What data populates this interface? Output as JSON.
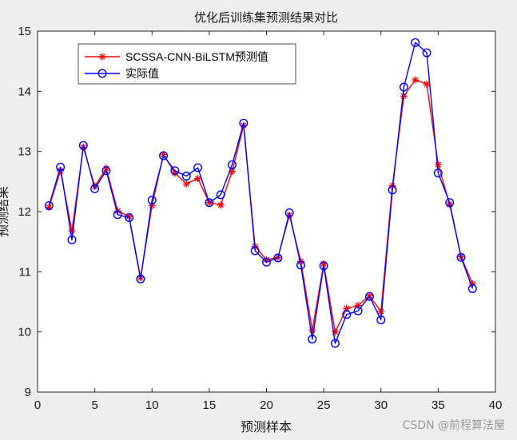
{
  "watermark": "CSDN @前程算法屋",
  "colors": {
    "predicted": "#ff0000",
    "actual": "#0000ff",
    "axis": "#262626",
    "background": "#ffffff"
  },
  "chart_data": {
    "type": "line",
    "title": "优化后训练集预测结果对比",
    "xlabel": "预测样本",
    "ylabel": "预测结果",
    "xlim": [
      0,
      40
    ],
    "ylim": [
      9,
      15
    ],
    "xticks": [
      0,
      5,
      10,
      15,
      20,
      25,
      30,
      35,
      40
    ],
    "yticks": [
      9,
      10,
      11,
      12,
      13,
      14,
      15
    ],
    "grid": false,
    "legend_position": "top-left",
    "x": [
      1,
      2,
      3,
      4,
      5,
      6,
      7,
      8,
      9,
      10,
      11,
      12,
      13,
      14,
      15,
      16,
      17,
      18,
      19,
      20,
      21,
      22,
      23,
      24,
      25,
      26,
      27,
      28,
      29,
      30,
      31,
      32,
      33,
      34,
      35,
      36,
      37,
      38
    ],
    "series": [
      {
        "name": "SCSSA-CNN-BiLSTM预测值",
        "color": "#ff0000",
        "marker": "asterisk",
        "values": [
          12.07,
          12.68,
          11.68,
          13.07,
          12.42,
          12.72,
          12.01,
          11.92,
          10.9,
          12.1,
          12.95,
          12.64,
          12.46,
          12.55,
          12.15,
          12.11,
          12.67,
          13.43,
          11.42,
          11.2,
          11.24,
          11.94,
          11.17,
          10.03,
          11.13,
          10.0,
          10.39,
          10.44,
          10.6,
          10.34,
          12.43,
          13.92,
          14.19,
          14.12,
          12.78,
          12.12,
          11.25,
          10.8
        ]
      },
      {
        "name": "实际值",
        "color": "#0000ff",
        "marker": "circle",
        "values": [
          12.1,
          12.74,
          11.53,
          13.1,
          12.38,
          12.68,
          11.95,
          11.9,
          10.88,
          12.19,
          12.93,
          12.68,
          12.59,
          12.73,
          12.15,
          12.28,
          12.78,
          13.47,
          11.35,
          11.16,
          11.23,
          11.98,
          11.11,
          9.88,
          11.1,
          9.81,
          10.29,
          10.35,
          10.59,
          10.2,
          12.36,
          14.07,
          14.81,
          14.64,
          12.64,
          12.15,
          11.24,
          10.72
        ]
      }
    ]
  }
}
